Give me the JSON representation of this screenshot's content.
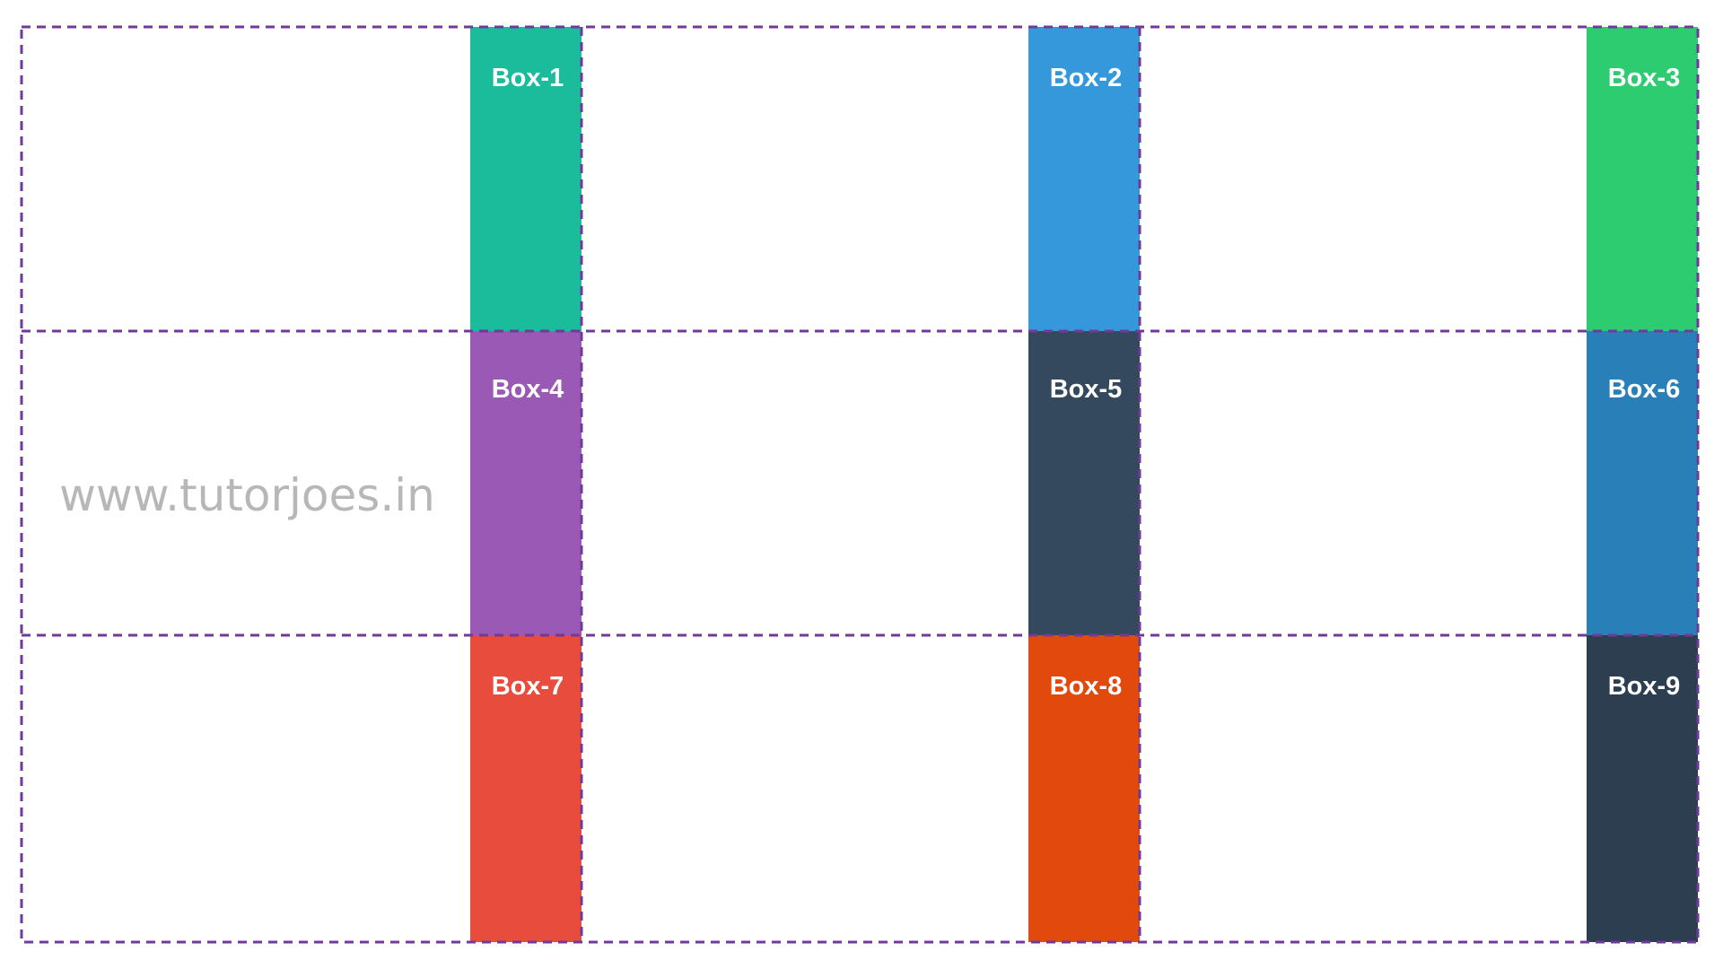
{
  "watermark": "www.tutorjoes.in",
  "grid_line_color": "#6f3a9a",
  "boxes": [
    {
      "label": "Box-1",
      "color": "#1abc9c"
    },
    {
      "label": "Box-2",
      "color": "#3498db"
    },
    {
      "label": "Box-3",
      "color": "#2ecc71"
    },
    {
      "label": "Box-4",
      "color": "#9b59b6"
    },
    {
      "label": "Box-5",
      "color": "#34495e"
    },
    {
      "label": "Box-6",
      "color": "#2980b9"
    },
    {
      "label": "Box-7",
      "color": "#e74c3c"
    },
    {
      "label": "Box-8",
      "color": "#e14a0c"
    },
    {
      "label": "Box-9",
      "color": "#2c3e50"
    }
  ]
}
